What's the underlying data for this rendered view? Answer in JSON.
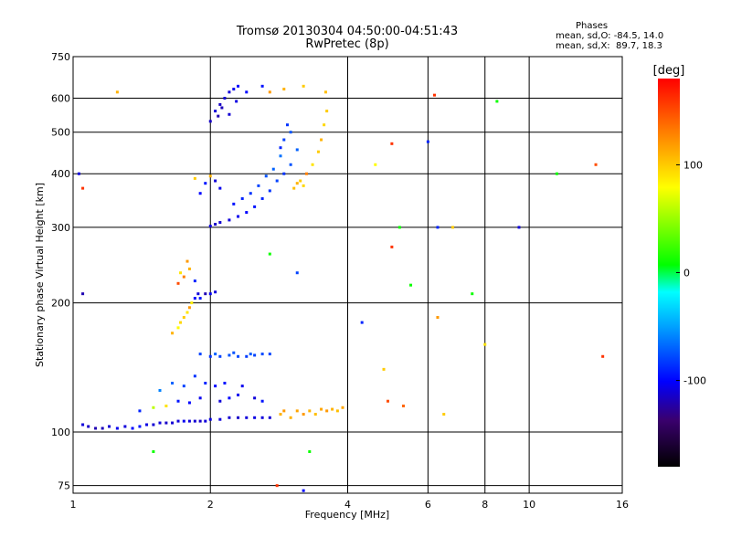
{
  "chart_data": {
    "type": "scatter",
    "title": "Tromsø 20130304 04:50:00-04:51:43",
    "subtitle": "RwPretec (8p)",
    "xlabel": "Frequency [MHz]",
    "ylabel": "Stationary phase Virtual Height [km]",
    "x_scale": "log",
    "y_scale": "log",
    "xlim": [
      1,
      16
    ],
    "ylim": [
      72,
      750
    ],
    "x_ticks": [
      1,
      2,
      4,
      6,
      8,
      10,
      16
    ],
    "x_tick_labels": [
      "1",
      "2",
      "4",
      "6",
      "8",
      "10",
      "16"
    ],
    "y_ticks": [
      75,
      100,
      200,
      300,
      400,
      500,
      600,
      750
    ],
    "y_tick_labels": [
      "75",
      "100",
      "200",
      "300",
      "400",
      "500",
      "600",
      "750"
    ],
    "grid": true,
    "colorbar": {
      "label": "[deg]",
      "range": [
        -180,
        180
      ],
      "ticks": [
        100,
        0,
        -100
      ],
      "tick_labels": [
        "100",
        "0",
        "-100"
      ]
    },
    "stats": {
      "heading": "Phases",
      "o_mode": "mean, sd,O: -84.5, 14.0",
      "x_mode": "mean, sd,X:  89.7, 18.3"
    },
    "series": [
      {
        "points": [
          [
            1.05,
            104,
            -110
          ],
          [
            1.08,
            103,
            -115
          ],
          [
            1.12,
            102,
            -120
          ],
          [
            1.16,
            102,
            -118
          ],
          [
            1.2,
            103,
            -112
          ],
          [
            1.25,
            102,
            -105
          ],
          [
            1.3,
            103,
            -110
          ],
          [
            1.35,
            102,
            -100
          ],
          [
            1.4,
            103,
            -95
          ],
          [
            1.45,
            104,
            -108
          ],
          [
            1.5,
            104,
            -112
          ],
          [
            1.55,
            105,
            -110
          ],
          [
            1.6,
            105,
            -115
          ],
          [
            1.65,
            105,
            -112
          ],
          [
            1.7,
            106,
            -110
          ],
          [
            1.75,
            106,
            -105
          ],
          [
            1.8,
            106,
            -110
          ],
          [
            1.85,
            106,
            -112
          ],
          [
            1.9,
            106,
            -115
          ],
          [
            1.95,
            106,
            -110
          ],
          [
            2.0,
            107,
            -108
          ],
          [
            2.1,
            107,
            -110
          ],
          [
            2.2,
            108,
            -112
          ],
          [
            2.3,
            108,
            -115
          ],
          [
            2.4,
            108,
            -110
          ],
          [
            2.5,
            108,
            -108
          ],
          [
            2.6,
            108,
            -110
          ],
          [
            2.7,
            108,
            -112
          ],
          [
            1.4,
            112,
            -90
          ],
          [
            1.5,
            114,
            60
          ],
          [
            1.6,
            115,
            90
          ],
          [
            1.7,
            118,
            -95
          ],
          [
            1.8,
            117,
            -100
          ],
          [
            1.9,
            120,
            -105
          ],
          [
            2.1,
            118,
            -110
          ],
          [
            2.2,
            120,
            -100
          ],
          [
            2.3,
            122,
            -105
          ],
          [
            2.5,
            120,
            -110
          ],
          [
            2.6,
            118,
            -95
          ],
          [
            1.55,
            125,
            -60
          ],
          [
            1.65,
            130,
            -70
          ],
          [
            1.75,
            128,
            -80
          ],
          [
            1.85,
            135,
            -85
          ],
          [
            1.95,
            130,
            -90
          ],
          [
            2.05,
            128,
            -100
          ],
          [
            2.15,
            130,
            -95
          ],
          [
            2.35,
            128,
            -105
          ],
          [
            1.9,
            152,
            -80
          ],
          [
            2.0,
            150,
            -85
          ],
          [
            2.1,
            150,
            -80
          ],
          [
            2.2,
            151,
            -75
          ],
          [
            2.3,
            150,
            -78
          ],
          [
            2.4,
            150,
            -82
          ],
          [
            2.5,
            151,
            -80
          ],
          [
            2.6,
            152,
            -78
          ],
          [
            2.7,
            152,
            -80
          ],
          [
            2.05,
            152,
            -70
          ],
          [
            2.25,
            153,
            -75
          ],
          [
            2.45,
            152,
            -72
          ],
          [
            1.65,
            170,
            110
          ],
          [
            1.7,
            175,
            80
          ],
          [
            1.72,
            180,
            95
          ],
          [
            1.75,
            185,
            100
          ],
          [
            1.78,
            190,
            90
          ],
          [
            1.8,
            195,
            120
          ],
          [
            1.82,
            200,
            85
          ],
          [
            1.85,
            205,
            -100
          ],
          [
            1.88,
            210,
            -110
          ],
          [
            1.9,
            205,
            -95
          ],
          [
            1.95,
            210,
            -120
          ],
          [
            2.0,
            210,
            -105
          ],
          [
            2.05,
            212,
            -110
          ],
          [
            1.75,
            230,
            130
          ],
          [
            1.8,
            240,
            110
          ],
          [
            1.78,
            250,
            120
          ],
          [
            1.72,
            235,
            90
          ],
          [
            1.7,
            222,
            150
          ],
          [
            1.85,
            225,
            -90
          ],
          [
            2.0,
            302,
            -110
          ],
          [
            2.05,
            305,
            -115
          ],
          [
            2.1,
            308,
            -112
          ],
          [
            2.2,
            312,
            -110
          ],
          [
            2.3,
            318,
            -105
          ],
          [
            2.4,
            325,
            -100
          ],
          [
            2.5,
            335,
            -95
          ],
          [
            2.6,
            350,
            -90
          ],
          [
            2.7,
            365,
            -85
          ],
          [
            2.8,
            385,
            -80
          ],
          [
            2.9,
            400,
            -85
          ],
          [
            3.0,
            420,
            -75
          ],
          [
            2.25,
            340,
            -95
          ],
          [
            2.35,
            350,
            -90
          ],
          [
            2.45,
            360,
            -85
          ],
          [
            2.55,
            375,
            -80
          ],
          [
            2.65,
            395,
            -75
          ],
          [
            2.75,
            410,
            -70
          ],
          [
            2.85,
            440,
            -65
          ],
          [
            1.9,
            360,
            -100
          ],
          [
            1.95,
            380,
            -95
          ],
          [
            2.0,
            395,
            110
          ],
          [
            2.05,
            385,
            -110
          ],
          [
            2.1,
            370,
            -105
          ],
          [
            1.85,
            390,
            100
          ],
          [
            3.05,
            370,
            105
          ],
          [
            3.1,
            380,
            110
          ],
          [
            3.15,
            385,
            100
          ],
          [
            3.2,
            375,
            95
          ],
          [
            3.25,
            400,
            130
          ],
          [
            3.35,
            420,
            90
          ],
          [
            3.45,
            450,
            100
          ],
          [
            3.5,
            480,
            110
          ],
          [
            3.55,
            520,
            95
          ],
          [
            3.6,
            560,
            100
          ],
          [
            3.58,
            620,
            105
          ],
          [
            2.05,
            560,
            -110
          ],
          [
            2.1,
            580,
            -115
          ],
          [
            2.15,
            600,
            -112
          ],
          [
            2.2,
            620,
            -110
          ],
          [
            2.25,
            630,
            -105
          ],
          [
            2.3,
            640,
            -100
          ],
          [
            2.0,
            530,
            -115
          ],
          [
            2.08,
            545,
            -120
          ],
          [
            2.12,
            570,
            -118
          ],
          [
            2.2,
            550,
            -112
          ],
          [
            2.28,
            590,
            -108
          ],
          [
            2.4,
            620,
            -100
          ],
          [
            2.6,
            640,
            -95
          ],
          [
            2.7,
            620,
            120
          ],
          [
            2.9,
            630,
            110
          ],
          [
            3.2,
            640,
            100
          ],
          [
            2.9,
            480,
            -80
          ],
          [
            3.0,
            500,
            -75
          ],
          [
            2.95,
            520,
            -85
          ],
          [
            2.85,
            460,
            -90
          ],
          [
            3.1,
            455,
            -70
          ],
          [
            2.85,
            110,
            110
          ],
          [
            2.9,
            112,
            120
          ],
          [
            3.0,
            108,
            110
          ],
          [
            3.1,
            112,
            115
          ],
          [
            3.2,
            110,
            120
          ],
          [
            3.3,
            112,
            110
          ],
          [
            3.4,
            110,
            105
          ],
          [
            3.5,
            113,
            115
          ],
          [
            3.6,
            112,
            120
          ],
          [
            3.7,
            113,
            110
          ],
          [
            3.8,
            112,
            105
          ],
          [
            3.9,
            114,
            115
          ],
          [
            2.8,
            75,
            160
          ],
          [
            3.2,
            73,
            -100
          ],
          [
            3.3,
            90,
            10
          ],
          [
            2.7,
            260,
            10
          ],
          [
            3.1,
            235,
            -80
          ],
          [
            4.3,
            180,
            -90
          ],
          [
            4.8,
            140,
            100
          ],
          [
            5.0,
            270,
            160
          ],
          [
            5.2,
            300,
            10
          ],
          [
            5.5,
            220,
            10
          ],
          [
            5.0,
            470,
            160
          ],
          [
            6.2,
            610,
            160
          ],
          [
            6.0,
            475,
            -90
          ],
          [
            6.3,
            300,
            -90
          ],
          [
            6.8,
            300,
            100
          ],
          [
            7.5,
            210,
            10
          ],
          [
            8.5,
            590,
            10
          ],
          [
            9.5,
            300,
            -110
          ],
          [
            8.0,
            160,
            90
          ],
          [
            6.5,
            110,
            100
          ],
          [
            4.9,
            118,
            150
          ],
          [
            5.3,
            115,
            140
          ],
          [
            6.3,
            185,
            120
          ],
          [
            11.5,
            400,
            10
          ],
          [
            14.0,
            420,
            150
          ],
          [
            14.5,
            150,
            160
          ],
          [
            4.6,
            420,
            80
          ],
          [
            1.25,
            620,
            110
          ],
          [
            1.05,
            210,
            -120
          ],
          [
            1.03,
            400,
            -110
          ],
          [
            1.05,
            370,
            160
          ],
          [
            1.5,
            90,
            10
          ]
        ]
      }
    ]
  }
}
